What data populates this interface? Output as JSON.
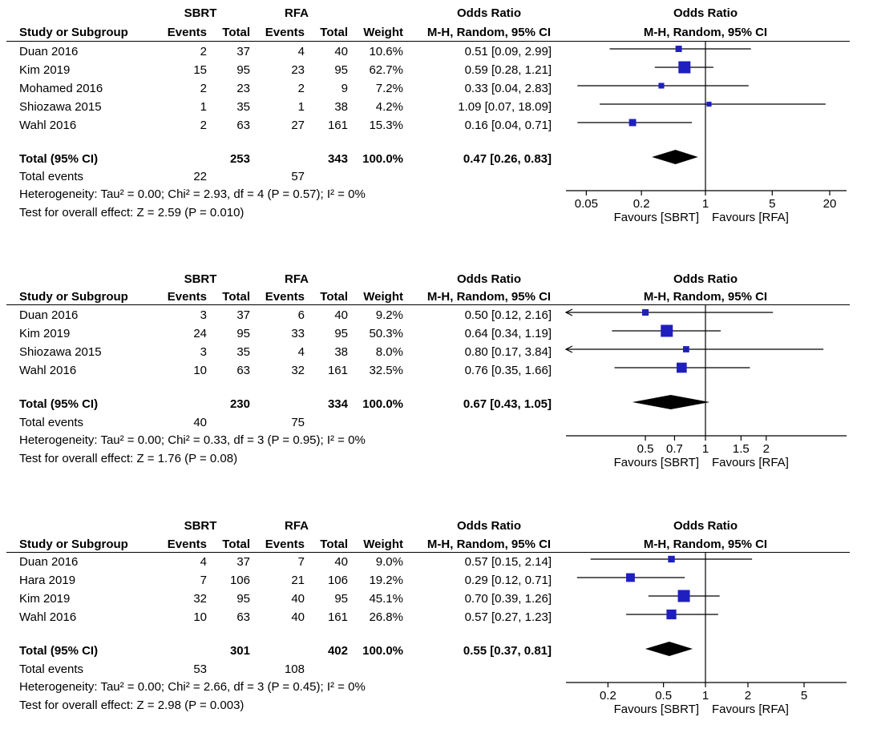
{
  "chart_data": [
    {
      "type": "forest",
      "headers": {
        "group1": "SBRT",
        "group2": "RFA",
        "study": "Study or Subgroup",
        "events": "Events",
        "total": "Total",
        "weight": "Weight",
        "or_title": "Odds Ratio",
        "or_method": "M-H, Random, 95% CI"
      },
      "scale": {
        "type": "log",
        "min": 0.03,
        "max": 30,
        "ticks": [
          0.05,
          0.2,
          1,
          5,
          20
        ]
      },
      "studies": [
        {
          "name": "Duan 2016",
          "e1": "2",
          "n1": "37",
          "e2": "4",
          "n2": "40",
          "weight": "10.6%",
          "ci_text": "0.51 [0.09, 2.99]",
          "or": 0.51,
          "lo": 0.09,
          "hi": 2.99,
          "w": 10.6
        },
        {
          "name": "Kim 2019",
          "e1": "15",
          "n1": "95",
          "e2": "23",
          "n2": "95",
          "weight": "62.7%",
          "ci_text": "0.59 [0.28, 1.21]",
          "or": 0.59,
          "lo": 0.28,
          "hi": 1.21,
          "w": 62.7
        },
        {
          "name": "Mohamed 2016",
          "e1": "2",
          "n1": "23",
          "e2": "2",
          "n2": "9",
          "weight": "7.2%",
          "ci_text": "0.33 [0.04, 2.83]",
          "or": 0.33,
          "lo": 0.04,
          "hi": 2.83,
          "w": 7.2
        },
        {
          "name": "Shiozawa 2015",
          "e1": "1",
          "n1": "35",
          "e2": "1",
          "n2": "38",
          "weight": "4.2%",
          "ci_text": "1.09 [0.07, 18.09]",
          "or": 1.09,
          "lo": 0.07,
          "hi": 18.09,
          "w": 4.2
        },
        {
          "name": "Wahl 2016",
          "e1": "2",
          "n1": "63",
          "e2": "27",
          "n2": "161",
          "weight": "15.3%",
          "ci_text": "0.16 [0.04, 0.71]",
          "or": 0.16,
          "lo": 0.04,
          "hi": 0.71,
          "w": 15.3
        }
      ],
      "total": {
        "label": "Total (95% CI)",
        "n1": "253",
        "n2": "343",
        "weight": "100.0%",
        "ci_text": "0.47 [0.26, 0.83]",
        "or": 0.47,
        "lo": 0.26,
        "hi": 0.83
      },
      "total_events": {
        "label": "Total events",
        "e1": "22",
        "e2": "57"
      },
      "heterogeneity": "Heterogeneity: Tau² = 0.00; Chi² = 2.93, df = 4 (P = 0.57); I² = 0%",
      "overall": "Test for overall effect: Z = 2.59 (P = 0.010)",
      "favours_left": "Favours [SBRT]",
      "favours_right": "Favours [RFA]"
    },
    {
      "type": "forest",
      "headers": {
        "group1": "SBRT",
        "group2": "RFA",
        "study": "Study or Subgroup",
        "events": "Events",
        "total": "Total",
        "weight": "Weight",
        "or_title": "Odds Ratio",
        "or_method": "M-H, Random, 95% CI"
      },
      "scale": {
        "type": "log",
        "min": 0.2,
        "max": 5,
        "ticks": [
          0.5,
          0.7,
          1,
          1.5,
          2
        ]
      },
      "studies": [
        {
          "name": "Duan 2016",
          "e1": "3",
          "n1": "37",
          "e2": "6",
          "n2": "40",
          "weight": "9.2%",
          "ci_text": "0.50 [0.12, 2.16]",
          "or": 0.5,
          "lo": 0.12,
          "hi": 2.16,
          "w": 9.2
        },
        {
          "name": "Kim 2019",
          "e1": "24",
          "n1": "95",
          "e2": "33",
          "n2": "95",
          "weight": "50.3%",
          "ci_text": "0.64 [0.34, 1.19]",
          "or": 0.64,
          "lo": 0.34,
          "hi": 1.19,
          "w": 50.3
        },
        {
          "name": "Shiozawa 2015",
          "e1": "3",
          "n1": "35",
          "e2": "4",
          "n2": "38",
          "weight": "8.0%",
          "ci_text": "0.80 [0.17, 3.84]",
          "or": 0.8,
          "lo": 0.17,
          "hi": 3.84,
          "w": 8.0
        },
        {
          "name": "Wahl 2016",
          "e1": "10",
          "n1": "63",
          "e2": "32",
          "n2": "161",
          "weight": "32.5%",
          "ci_text": "0.76 [0.35, 1.66]",
          "or": 0.76,
          "lo": 0.35,
          "hi": 1.66,
          "w": 32.5
        }
      ],
      "total": {
        "label": "Total (95% CI)",
        "n1": "230",
        "n2": "334",
        "weight": "100.0%",
        "ci_text": "0.67 [0.43, 1.05]",
        "or": 0.67,
        "lo": 0.43,
        "hi": 1.05
      },
      "total_events": {
        "label": "Total events",
        "e1": "40",
        "e2": "75"
      },
      "heterogeneity": "Heterogeneity: Tau² = 0.00; Chi² = 0.33, df = 3 (P = 0.95); I² = 0%",
      "overall": "Test for overall effect: Z = 1.76 (P = 0.08)",
      "favours_left": "Favours [SBRT]",
      "favours_right": "Favours [RFA]"
    },
    {
      "type": "forest",
      "headers": {
        "group1": "SBRT",
        "group2": "RFA",
        "study": "Study or Subgroup",
        "events": "Events",
        "total": "Total",
        "weight": "Weight",
        "or_title": "Odds Ratio",
        "or_method": "M-H, Random, 95% CI"
      },
      "scale": {
        "type": "log",
        "min": 0.1,
        "max": 10,
        "ticks": [
          0.2,
          0.5,
          1,
          2,
          5
        ]
      },
      "studies": [
        {
          "name": "Duan 2016",
          "e1": "4",
          "n1": "37",
          "e2": "7",
          "n2": "40",
          "weight": "9.0%",
          "ci_text": "0.57 [0.15, 2.14]",
          "or": 0.57,
          "lo": 0.15,
          "hi": 2.14,
          "w": 9.0
        },
        {
          "name": "Hara 2019",
          "e1": "7",
          "n1": "106",
          "e2": "21",
          "n2": "106",
          "weight": "19.2%",
          "ci_text": "0.29 [0.12, 0.71]",
          "or": 0.29,
          "lo": 0.12,
          "hi": 0.71,
          "w": 19.2
        },
        {
          "name": "Kim 2019",
          "e1": "32",
          "n1": "95",
          "e2": "40",
          "n2": "95",
          "weight": "45.1%",
          "ci_text": "0.70 [0.39, 1.26]",
          "or": 0.7,
          "lo": 0.39,
          "hi": 1.26,
          "w": 45.1
        },
        {
          "name": "Wahl 2016",
          "e1": "10",
          "n1": "63",
          "e2": "40",
          "n2": "161",
          "weight": "26.8%",
          "ci_text": "0.57 [0.27, 1.23]",
          "or": 0.57,
          "lo": 0.27,
          "hi": 1.23,
          "w": 26.8
        }
      ],
      "total": {
        "label": "Total (95% CI)",
        "n1": "301",
        "n2": "402",
        "weight": "100.0%",
        "ci_text": "0.55 [0.37, 0.81]",
        "or": 0.55,
        "lo": 0.37,
        "hi": 0.81
      },
      "total_events": {
        "label": "Total events",
        "e1": "53",
        "e2": "108"
      },
      "heterogeneity": "Heterogeneity: Tau² = 0.00; Chi² = 2.66, df = 3 (P = 0.45); I² = 0%",
      "overall": "Test for overall effect: Z = 2.98 (P = 0.003)",
      "favours_left": "Favours [SBRT]",
      "favours_right": "Favours [RFA]"
    }
  ]
}
